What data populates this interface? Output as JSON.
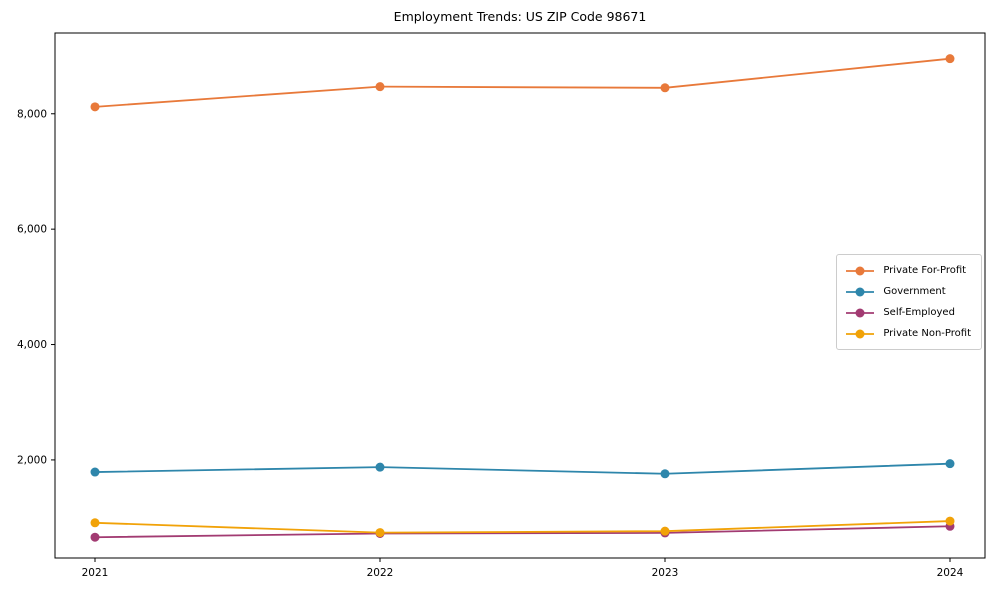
{
  "chart_data": {
    "type": "line",
    "title": "Employment Trends: US ZIP Code 98671",
    "xlabel": "",
    "ylabel": "",
    "x": [
      "2021",
      "2022",
      "2023",
      "2024"
    ],
    "series": [
      {
        "name": "Private For-Profit",
        "color": "#e8793a",
        "values": [
          8120,
          8470,
          8450,
          8955
        ]
      },
      {
        "name": "Government",
        "color": "#2e86ab",
        "values": [
          1790,
          1875,
          1760,
          1935
        ]
      },
      {
        "name": "Self-Employed",
        "color": "#a23b72",
        "values": [
          660,
          725,
          735,
          850
        ]
      },
      {
        "name": "Private Non-Profit",
        "color": "#f1a208",
        "values": [
          910,
          740,
          765,
          940
        ]
      }
    ],
    "yticks": [
      {
        "value": 2000,
        "label": "2,000"
      },
      {
        "value": 4000,
        "label": "4,000"
      },
      {
        "value": 6000,
        "label": "6,000"
      },
      {
        "value": 8000,
        "label": "8,000"
      }
    ],
    "ylim": [
      300,
      9400
    ],
    "grid": false,
    "legend_position": "center-right",
    "axis_color": "#000000",
    "background_color": "#ffffff",
    "legend_border_color": "#cccccc"
  }
}
